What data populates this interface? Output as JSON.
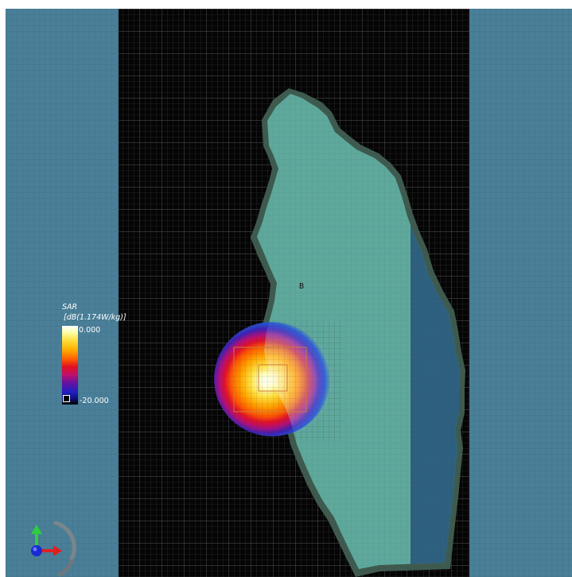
{
  "legend": {
    "title": "SAR",
    "unit": "[dB(1.174W/kg)]",
    "max_label": "0.000",
    "min_label": "-20.000",
    "colors": [
      "#ffffff",
      "#ffe040",
      "#ffb000",
      "#ff6000",
      "#e01020",
      "#c0106a",
      "#6a10a0",
      "#2020c0",
      "#101080",
      "#000000"
    ]
  },
  "annotation": {
    "point_label": "B"
  },
  "colors": {
    "side_panel": "#497f99",
    "grid_background": "#050505",
    "tissue_fill": "#5ea89c",
    "tissue_outline": "#3e5a4e",
    "tissue_shadow": "#2e6080"
  },
  "icons": {
    "axes": "axis-triad-icon"
  }
}
